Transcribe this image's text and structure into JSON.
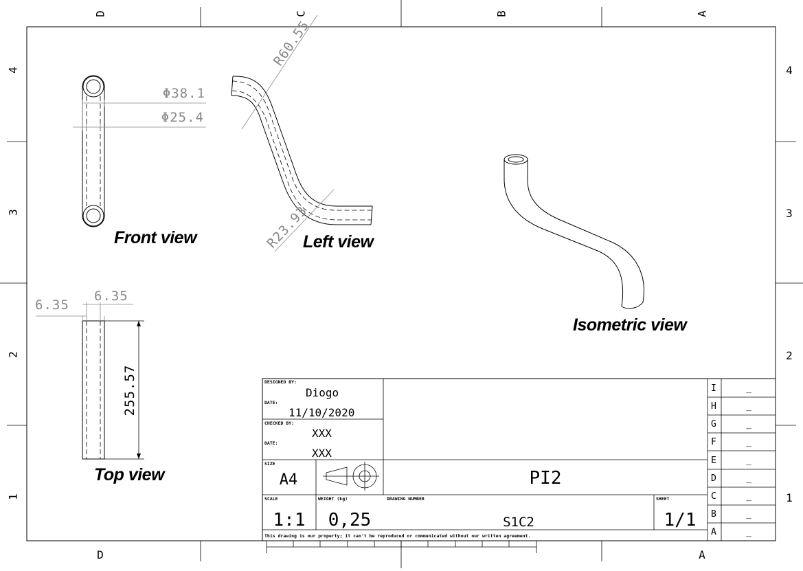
{
  "zones": {
    "columns_top": [
      "D",
      "C",
      "B",
      "A"
    ],
    "columns_bottom": [
      "D",
      "A"
    ],
    "rows": [
      "4",
      "3",
      "2",
      "1"
    ]
  },
  "views": {
    "front": "Front view",
    "left": "Left view",
    "top": "Top view",
    "iso": "Isometric view"
  },
  "dimensions": {
    "outer_diameter": "Φ38.1",
    "inner_diameter": "Φ25.4",
    "bend_radius_1": "R60.55",
    "bend_radius_2": "R23.93",
    "wall_left": "6.35",
    "wall_right": "6.35",
    "length": "255.57"
  },
  "title_block": {
    "designed_by_label": "DESIGNED BY:",
    "designed_by": "Diogo",
    "date_label_1": "DATE:",
    "date_1": "11/10/2020",
    "checked_by_label": "CHECKED BY:",
    "checked_by": "XXX",
    "date_label_2": "DATE:",
    "date_2": "XXX",
    "size_label": "SIZE",
    "size": "A4",
    "title": "PI2",
    "scale_label": "SCALE",
    "scale": "1:1",
    "weight_label": "WEIGHT (kg)",
    "weight": "0,25",
    "drawing_number_label": "DRAWING NUMBER",
    "drawing_number": "S1C2",
    "sheet_label": "SHEET",
    "sheet": "1/1",
    "disclaimer": "This drawing is our property; it can't be reproduced or communicated without our written agreement."
  },
  "revisions": [
    {
      "letter": "I",
      "value": "_"
    },
    {
      "letter": "H",
      "value": "_"
    },
    {
      "letter": "G",
      "value": "_"
    },
    {
      "letter": "F",
      "value": "_"
    },
    {
      "letter": "E",
      "value": "_"
    },
    {
      "letter": "D",
      "value": "_"
    },
    {
      "letter": "C",
      "value": "_"
    },
    {
      "letter": "B",
      "value": "_"
    },
    {
      "letter": "A",
      "value": "_"
    }
  ]
}
